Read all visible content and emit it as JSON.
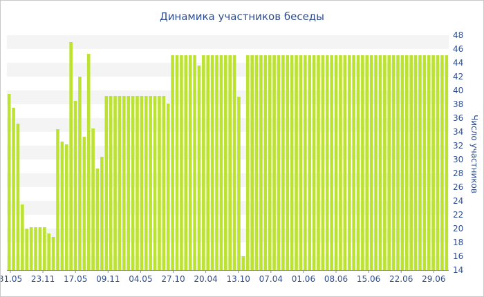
{
  "chart_data": {
    "type": "bar",
    "title": "Динамика участников беседы",
    "ylabel": "Число участников",
    "xlabel": "",
    "ylim": [
      14,
      48
    ],
    "y_ticks": [
      14,
      16,
      18,
      20,
      22,
      24,
      26,
      28,
      30,
      32,
      34,
      36,
      38,
      40,
      42,
      44,
      46,
      48
    ],
    "x_tick_labels": [
      "31.05",
      "23.11",
      "17.05",
      "09.11",
      "04.05",
      "27.10",
      "20.04",
      "13.10",
      "07.04",
      "01.06",
      "08.06",
      "15.06",
      "22.06",
      "29.06"
    ],
    "bar_color": "#bde332",
    "grid": "horizontal bands",
    "values": [
      39.5,
      37.5,
      35.2,
      23.5,
      20,
      20.2,
      20.2,
      20.2,
      20.2,
      19.3,
      18.8,
      34.4,
      32.6,
      32.2,
      47,
      38.5,
      42,
      33.3,
      45.3,
      34.5,
      28.7,
      30.4,
      39.2,
      39.2,
      39.2,
      39.2,
      39.2,
      39.2,
      39.2,
      39.2,
      39.2,
      39.2,
      39.2,
      39.2,
      39.2,
      39.2,
      38.1,
      45.1,
      45.1,
      45.1,
      45.1,
      45.1,
      45.1,
      43.6,
      45.1,
      45.1,
      45.1,
      45.1,
      45.1,
      45.1,
      45.1,
      45.1,
      39.1,
      16,
      45.1,
      45.1,
      45.1,
      45.1,
      45.1,
      45.1,
      45.1,
      45.1,
      45.1,
      45.1,
      45.1,
      45.1,
      45.1,
      45.1,
      45.1,
      45.1,
      45.1,
      45.1,
      45.1,
      45.1,
      45.1,
      45.1,
      45.1,
      45.1,
      45.1,
      45.1,
      45.1,
      45.1,
      45.1,
      45.1,
      45.1,
      45.1,
      45.1,
      45.1,
      45.1,
      45.1,
      45.1,
      45.1,
      45.1,
      45.1,
      45.1,
      45.1,
      45.1,
      45.1,
      45.1,
      45.1
    ]
  }
}
